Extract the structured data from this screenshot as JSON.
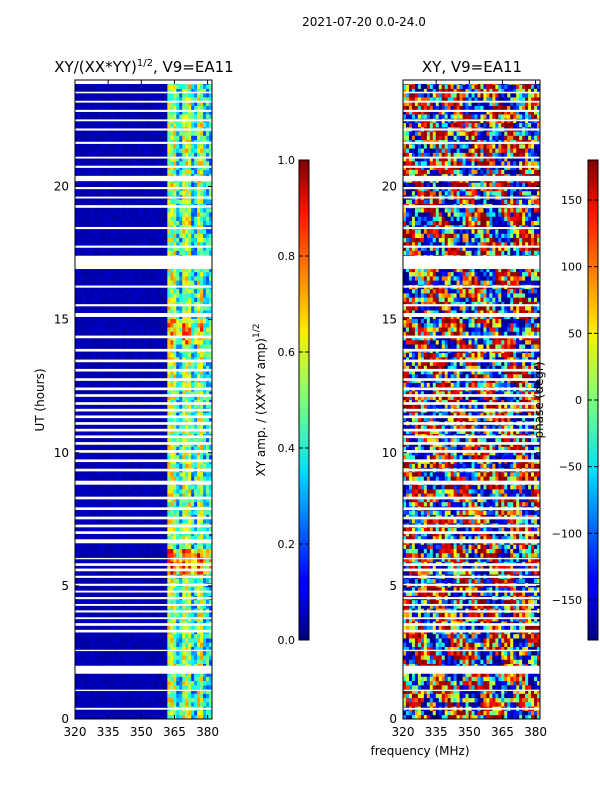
{
  "suptitle": "2021-07-20 0.0-24.0",
  "chart_data": [
    {
      "type": "heatmap",
      "title": "XY/(XX*YY)",
      "title_exponent": "1/2",
      "title_suffix": ", V9=EA11",
      "xlabel": "",
      "ylabel": "UT (hours)",
      "xlim": [
        320,
        382
      ],
      "ylim": [
        0,
        24
      ],
      "xticks": [
        "320",
        "335",
        "350",
        "365",
        "380"
      ],
      "xtick_values": [
        320,
        335,
        350,
        365,
        380
      ],
      "yticks": [
        "0",
        "5",
        "10",
        "15",
        "20"
      ],
      "ytick_values": [
        0,
        5,
        10,
        15,
        20
      ],
      "colormap": "jet",
      "colorbar": {
        "label": "XY amp. / (XX*YY amp)",
        "label_exponent": "1/2",
        "range": [
          0.0,
          1.0
        ],
        "ticks": [
          "0.0",
          "0.2",
          "0.4",
          "0.6",
          "0.8",
          "1.0"
        ],
        "tick_values": [
          0.0,
          0.2,
          0.4,
          0.6,
          0.8,
          1.0
        ]
      },
      "active_band_mhz": [
        362,
        382
      ],
      "notes": "Mostly low amplitude (dark blue) below 362 MHz; structured 0.2-0.7 amplitudes above 362 MHz; many blank (flagged) rows."
    },
    {
      "type": "heatmap",
      "title": "XY, V9=EA11",
      "xlabel": "frequency (MHz)",
      "ylabel": "",
      "xlim": [
        320,
        382
      ],
      "ylim": [
        0,
        24
      ],
      "xticks": [
        "320",
        "335",
        "350",
        "365",
        "380"
      ],
      "xtick_values": [
        320,
        335,
        350,
        365,
        380
      ],
      "yticks": [
        "0",
        "5",
        "10",
        "15",
        "20"
      ],
      "ytick_values": [
        0,
        5,
        10,
        15,
        20
      ],
      "colormap": "jet",
      "colorbar": {
        "label": "phase (degr)",
        "range": [
          -180,
          180
        ],
        "ticks": [
          "−150",
          "−100",
          "−50",
          "0",
          "50",
          "100",
          "150"
        ],
        "tick_values": [
          -150,
          -100,
          -50,
          0,
          50,
          100,
          150
        ]
      },
      "notes": "Phase wraps across full range; noisy fringe-like structure with many blank (flagged) rows."
    }
  ],
  "flagged_rows_hours": [
    [
      0.35,
      0.42
    ],
    [
      1.05,
      1.1
    ],
    [
      1.7,
      2.0
    ],
    [
      2.55,
      2.6
    ],
    [
      3.25,
      3.35
    ],
    [
      3.5,
      3.6
    ],
    [
      3.75,
      3.82
    ],
    [
      4.0,
      4.08
    ],
    [
      4.25,
      4.32
    ],
    [
      4.5,
      4.58
    ],
    [
      4.75,
      4.82
    ],
    [
      5.0,
      5.08
    ],
    [
      5.3,
      5.38
    ],
    [
      5.55,
      5.65
    ],
    [
      5.75,
      5.85
    ],
    [
      6.0,
      6.05
    ],
    [
      6.6,
      6.75
    ],
    [
      6.95,
      7.05
    ],
    [
      7.2,
      7.3
    ],
    [
      7.5,
      7.6
    ],
    [
      7.85,
      7.95
    ],
    [
      8.25,
      8.35
    ],
    [
      8.8,
      8.95
    ],
    [
      9.3,
      9.4
    ],
    [
      9.65,
      9.75
    ],
    [
      10.0,
      10.1
    ],
    [
      10.3,
      10.4
    ],
    [
      10.55,
      10.65
    ],
    [
      10.8,
      10.9
    ],
    [
      11.05,
      11.15
    ],
    [
      11.3,
      11.4
    ],
    [
      11.55,
      11.65
    ],
    [
      11.8,
      11.9
    ],
    [
      12.1,
      12.2
    ],
    [
      12.35,
      12.45
    ],
    [
      12.7,
      12.8
    ],
    [
      13.05,
      13.15
    ],
    [
      13.4,
      13.5
    ],
    [
      13.8,
      13.9
    ],
    [
      14.3,
      14.4
    ],
    [
      15.1,
      15.25
    ],
    [
      15.5,
      15.58
    ],
    [
      16.2,
      16.28
    ],
    [
      16.9,
      17.4
    ],
    [
      17.7,
      17.78
    ],
    [
      18.4,
      18.48
    ],
    [
      19.2,
      19.3
    ],
    [
      19.55,
      19.62
    ],
    [
      19.9,
      19.98
    ],
    [
      20.2,
      20.4
    ],
    [
      20.7,
      20.78
    ],
    [
      21.05,
      21.12
    ],
    [
      21.6,
      21.68
    ],
    [
      22.1,
      22.18
    ],
    [
      22.45,
      22.52
    ],
    [
      22.8,
      22.88
    ],
    [
      23.15,
      23.22
    ],
    [
      23.5,
      23.56
    ],
    [
      23.85,
      24.0
    ]
  ]
}
